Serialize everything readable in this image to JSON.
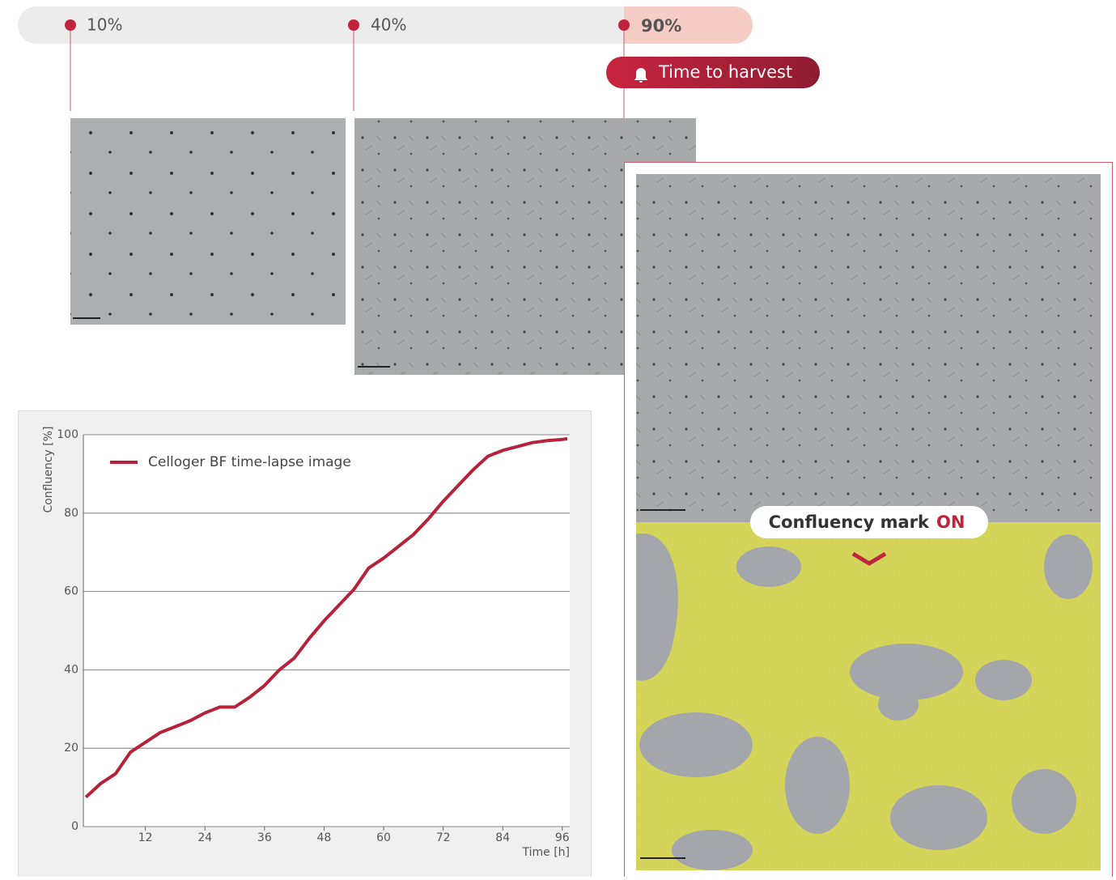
{
  "timeline": {
    "stages": [
      "10%",
      "40%",
      "90%"
    ],
    "alert": "Time to harvest"
  },
  "overlay": {
    "label": "Confluency mark",
    "state": "ON"
  },
  "chart_data": {
    "type": "line",
    "xlabel": "Time [h]",
    "ylabel": "Confluency [%]",
    "x": [
      0,
      3,
      6,
      9,
      12,
      15,
      18,
      21,
      24,
      27,
      30,
      33,
      36,
      39,
      42,
      45,
      48,
      51,
      54,
      57,
      60,
      63,
      66,
      69,
      72,
      75,
      78,
      81,
      84,
      87,
      90,
      93,
      96,
      97
    ],
    "series": [
      {
        "name": "Celloger BF time-lapse image",
        "color": "#b5223a",
        "values": [
          7.5,
          11,
          13.5,
          19,
          21.5,
          24,
          25.5,
          27,
          29,
          30.5,
          30.5,
          33,
          36,
          40,
          43,
          48,
          52.5,
          56.5,
          60.5,
          66,
          68.5,
          71.5,
          74.5,
          78.5,
          83,
          87,
          91,
          94.5,
          96,
          97,
          98,
          98.5,
          98.8,
          99
        ]
      }
    ],
    "xlim": [
      -0.5,
      97.5
    ],
    "ylim": [
      0,
      100
    ],
    "xticks": [
      12,
      24,
      36,
      48,
      60,
      72,
      84,
      96
    ],
    "yticks": [
      0,
      20,
      40,
      60,
      80,
      100
    ],
    "grid": true,
    "legend": "top-left"
  }
}
